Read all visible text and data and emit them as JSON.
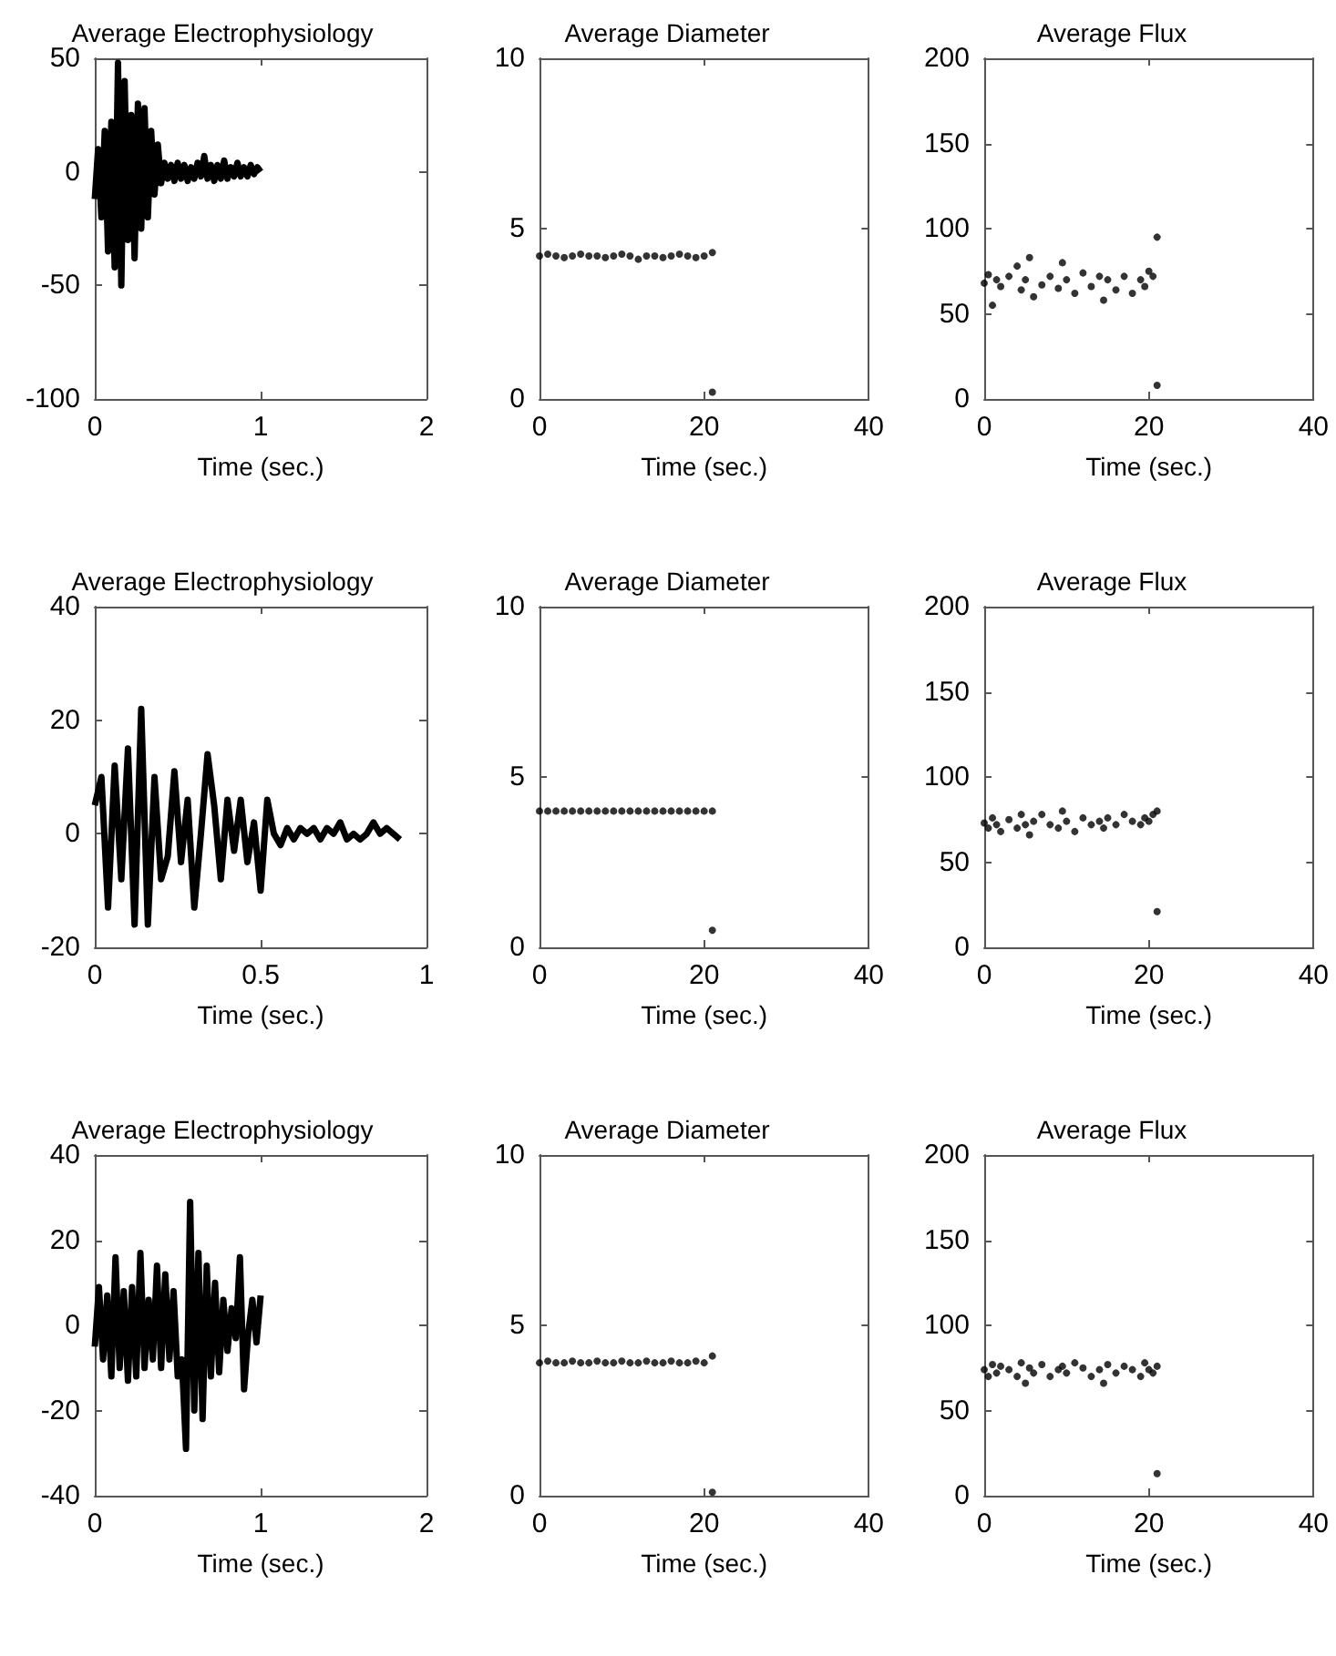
{
  "chart_data": [
    {
      "type": "line",
      "title": "Average Electrophysiology",
      "xlabel": "Time (sec.)",
      "marker": "none",
      "xlim": [
        0,
        2
      ],
      "xticks": [
        0,
        1,
        2
      ],
      "ylim": [
        -100,
        50
      ],
      "yticks": [
        -100,
        -50,
        0,
        50
      ],
      "series": [
        {
          "color": "#000000",
          "x": [
            0,
            0.02,
            0.04,
            0.06,
            0.08,
            0.1,
            0.12,
            0.14,
            0.16,
            0.18,
            0.2,
            0.22,
            0.24,
            0.26,
            0.28,
            0.3,
            0.32,
            0.34,
            0.36,
            0.38,
            0.4,
            0.42,
            0.44,
            0.46,
            0.48,
            0.5,
            0.52,
            0.54,
            0.56,
            0.58,
            0.6,
            0.62,
            0.64,
            0.66,
            0.68,
            0.7,
            0.72,
            0.74,
            0.76,
            0.78,
            0.8,
            0.82,
            0.84,
            0.86,
            0.88,
            0.9,
            0.92,
            0.94,
            0.96,
            0.98,
            1
          ],
          "values": [
            -12,
            10,
            -20,
            18,
            -35,
            22,
            -42,
            48,
            -50,
            40,
            -30,
            25,
            -38,
            30,
            -25,
            28,
            -20,
            18,
            -10,
            12,
            -5,
            4,
            -3,
            3,
            -4,
            4,
            -3,
            3,
            -4,
            2,
            -3,
            4,
            -2,
            7,
            -3,
            3,
            -4,
            3,
            -3,
            5,
            -3,
            2,
            -2,
            4,
            -2,
            2,
            -2,
            3,
            -1,
            2,
            0
          ]
        }
      ]
    },
    {
      "type": "scatter",
      "title": "Average Diameter",
      "xlabel": "Time (sec.)",
      "marker": "circle",
      "xlim": [
        0,
        40
      ],
      "xticks": [
        0,
        20,
        40
      ],
      "ylim": [
        0,
        10
      ],
      "yticks": [
        0,
        5,
        10
      ],
      "series": [
        {
          "color": "#000000",
          "x": [
            0,
            1,
            2,
            3,
            4,
            5,
            6,
            7,
            8,
            9,
            10,
            11,
            12,
            13,
            14,
            15,
            16,
            17,
            18,
            19,
            20,
            21,
            21
          ],
          "values": [
            4.2,
            4.25,
            4.2,
            4.15,
            4.2,
            4.25,
            4.2,
            4.2,
            4.15,
            4.2,
            4.25,
            4.2,
            4.1,
            4.2,
            4.2,
            4.15,
            4.2,
            4.25,
            4.2,
            4.15,
            4.2,
            4.3,
            0.2
          ]
        }
      ]
    },
    {
      "type": "scatter",
      "title": "Average Flux",
      "xlabel": "Time (sec.)",
      "marker": "circle",
      "xlim": [
        0,
        40
      ],
      "xticks": [
        0,
        20,
        40
      ],
      "ylim": [
        0,
        200
      ],
      "yticks": [
        0,
        50,
        100,
        150,
        200
      ],
      "series": [
        {
          "color": "#000000",
          "x": [
            0,
            0.5,
            1,
            1.5,
            2,
            3,
            4,
            4.5,
            5,
            5.5,
            6,
            7,
            8,
            9,
            9.5,
            10,
            11,
            12,
            13,
            14,
            14.5,
            15,
            16,
            17,
            18,
            19,
            19.5,
            20,
            20.5,
            21,
            21
          ],
          "values": [
            68,
            73,
            55,
            70,
            66,
            72,
            78,
            64,
            70,
            83,
            60,
            67,
            72,
            65,
            80,
            70,
            62,
            74,
            66,
            72,
            58,
            70,
            64,
            72,
            62,
            70,
            66,
            75,
            72,
            95,
            8
          ]
        }
      ]
    },
    {
      "type": "line",
      "title": "Average Electrophysiology",
      "xlabel": "Time (sec.)",
      "marker": "none",
      "xlim": [
        0,
        1
      ],
      "xticks": [
        0,
        0.5,
        1
      ],
      "ylim": [
        -20,
        40
      ],
      "yticks": [
        -20,
        0,
        20,
        40
      ],
      "series": [
        {
          "color": "#000000",
          "x": [
            0,
            0.02,
            0.04,
            0.06,
            0.08,
            0.1,
            0.12,
            0.14,
            0.16,
            0.18,
            0.2,
            0.22,
            0.24,
            0.26,
            0.28,
            0.3,
            0.32,
            0.34,
            0.36,
            0.38,
            0.4,
            0.42,
            0.44,
            0.46,
            0.48,
            0.5,
            0.52,
            0.54,
            0.56,
            0.58,
            0.6,
            0.62,
            0.64,
            0.66,
            0.68,
            0.7,
            0.72,
            0.74,
            0.76,
            0.78,
            0.8,
            0.82,
            0.84,
            0.86,
            0.88,
            0.9,
            0.92
          ],
          "values": [
            5,
            10,
            -13,
            12,
            -8,
            15,
            -16,
            22,
            -16,
            10,
            -8,
            -4,
            11,
            -5,
            6,
            -13,
            0,
            14,
            5,
            -8,
            6,
            -3,
            6,
            -5,
            2,
            -10,
            6,
            0,
            -2,
            1,
            -1,
            1,
            0,
            1,
            -1,
            1,
            0,
            2,
            -1,
            0,
            -1,
            0,
            2,
            0,
            1,
            0,
            -1
          ]
        }
      ]
    },
    {
      "type": "scatter",
      "title": "Average Diameter",
      "xlabel": "Time (sec.)",
      "marker": "circle",
      "xlim": [
        0,
        40
      ],
      "xticks": [
        0,
        20,
        40
      ],
      "ylim": [
        0,
        10
      ],
      "yticks": [
        0,
        5,
        10
      ],
      "series": [
        {
          "color": "#000000",
          "x": [
            0,
            1,
            2,
            3,
            4,
            5,
            6,
            7,
            8,
            9,
            10,
            11,
            12,
            13,
            14,
            15,
            16,
            17,
            18,
            19,
            20,
            21,
            21
          ],
          "values": [
            4,
            4,
            4,
            4,
            4,
            4,
            4,
            4,
            4,
            4,
            4,
            4,
            4,
            4,
            4,
            4,
            4,
            4,
            4,
            4,
            4,
            4,
            0.5
          ]
        }
      ]
    },
    {
      "type": "scatter",
      "title": "Average Flux",
      "xlabel": "Time (sec.)",
      "marker": "circle",
      "xlim": [
        0,
        40
      ],
      "xticks": [
        0,
        20,
        40
      ],
      "ylim": [
        0,
        200
      ],
      "yticks": [
        0,
        50,
        100,
        150,
        200
      ],
      "series": [
        {
          "color": "#000000",
          "x": [
            0,
            0.5,
            1,
            1.5,
            2,
            3,
            4,
            4.5,
            5,
            5.5,
            6,
            7,
            8,
            9,
            9.5,
            10,
            11,
            12,
            13,
            14,
            14.5,
            15,
            16,
            17,
            18,
            19,
            19.5,
            20,
            20.5,
            21,
            21
          ],
          "values": [
            73,
            70,
            76,
            72,
            68,
            75,
            70,
            78,
            72,
            66,
            74,
            78,
            72,
            70,
            80,
            74,
            68,
            76,
            72,
            74,
            70,
            76,
            72,
            78,
            74,
            72,
            76,
            74,
            78,
            80,
            21
          ]
        }
      ]
    },
    {
      "type": "line",
      "title": "Average Electrophysiology",
      "xlabel": "Time (sec.)",
      "marker": "none",
      "xlim": [
        0,
        2
      ],
      "xticks": [
        0,
        1,
        2
      ],
      "ylim": [
        -40,
        40
      ],
      "yticks": [
        -40,
        -20,
        0,
        20,
        40
      ],
      "series": [
        {
          "color": "#000000",
          "x": [
            0,
            0.025,
            0.05,
            0.075,
            0.1,
            0.125,
            0.15,
            0.175,
            0.2,
            0.225,
            0.25,
            0.275,
            0.3,
            0.325,
            0.35,
            0.375,
            0.4,
            0.425,
            0.45,
            0.475,
            0.5,
            0.525,
            0.55,
            0.575,
            0.6,
            0.625,
            0.65,
            0.675,
            0.7,
            0.725,
            0.75,
            0.775,
            0.8,
            0.825,
            0.85,
            0.875,
            0.9,
            0.925,
            0.95,
            0.975,
            1
          ],
          "values": [
            -5,
            9,
            -8,
            7,
            -12,
            16,
            -10,
            8,
            -13,
            9,
            -12,
            17,
            -10,
            6,
            -8,
            14,
            -10,
            12,
            -8,
            8,
            -12,
            -8,
            -29,
            29,
            -20,
            17,
            -22,
            14,
            -12,
            10,
            -11,
            6,
            -6,
            4,
            -3,
            16,
            -15,
            -2,
            6,
            -4,
            7
          ]
        }
      ]
    },
    {
      "type": "scatter",
      "title": "Average Diameter",
      "xlabel": "Time (sec.)",
      "marker": "circle",
      "xlim": [
        0,
        40
      ],
      "xticks": [
        0,
        20,
        40
      ],
      "ylim": [
        0,
        10
      ],
      "yticks": [
        0,
        5,
        10
      ],
      "series": [
        {
          "color": "#000000",
          "x": [
            0,
            1,
            2,
            3,
            4,
            5,
            6,
            7,
            8,
            9,
            10,
            11,
            12,
            13,
            14,
            15,
            16,
            17,
            18,
            19,
            20,
            21,
            21
          ],
          "values": [
            3.9,
            3.95,
            3.9,
            3.9,
            3.95,
            3.9,
            3.9,
            3.95,
            3.9,
            3.9,
            3.95,
            3.9,
            3.9,
            3.95,
            3.9,
            3.9,
            3.95,
            3.9,
            3.9,
            3.95,
            3.9,
            4.1,
            0.1
          ]
        }
      ]
    },
    {
      "type": "scatter",
      "title": "Average Flux",
      "xlabel": "Time (sec.)",
      "marker": "circle",
      "xlim": [
        0,
        40
      ],
      "xticks": [
        0,
        20,
        40
      ],
      "ylim": [
        0,
        200
      ],
      "yticks": [
        0,
        50,
        100,
        150,
        200
      ],
      "series": [
        {
          "color": "#000000",
          "x": [
            0,
            0.5,
            1,
            1.5,
            2,
            3,
            4,
            4.5,
            5,
            5.5,
            6,
            7,
            8,
            9,
            9.5,
            10,
            11,
            12,
            13,
            14,
            14.5,
            15,
            16,
            17,
            18,
            19,
            19.5,
            20,
            20.5,
            21,
            21
          ],
          "values": [
            74,
            70,
            77,
            72,
            76,
            74,
            70,
            78,
            66,
            75,
            72,
            77,
            70,
            74,
            76,
            72,
            78,
            75,
            70,
            74,
            66,
            77,
            72,
            76,
            74,
            70,
            78,
            74,
            72,
            76,
            13
          ]
        }
      ]
    }
  ]
}
